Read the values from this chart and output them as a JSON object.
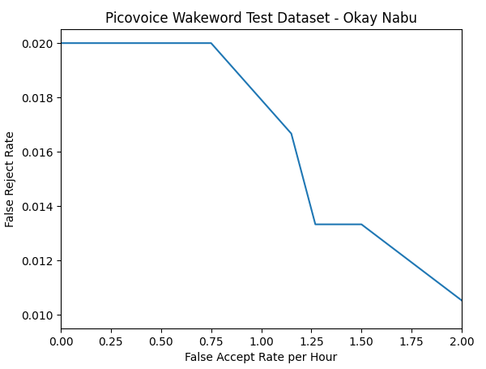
{
  "x": [
    0.0,
    0.75,
    1.15,
    1.27,
    1.5,
    2.0
  ],
  "y": [
    0.02,
    0.02,
    0.01667,
    0.01333,
    0.01333,
    0.01053
  ],
  "line_color": "#1f77b4",
  "line_width": 1.5,
  "title": "Picovoice Wakeword Test Dataset - Okay Nabu",
  "xlabel": "False Accept Rate per Hour",
  "ylabel": "False Reject Rate",
  "xlim": [
    0.0,
    2.0
  ],
  "ylim": [
    0.0095,
    0.0205
  ],
  "title_fontsize": 12,
  "label_fontsize": 10,
  "tick_fontsize": 10,
  "figsize": [
    6.0,
    4.55
  ],
  "dpi": 100
}
